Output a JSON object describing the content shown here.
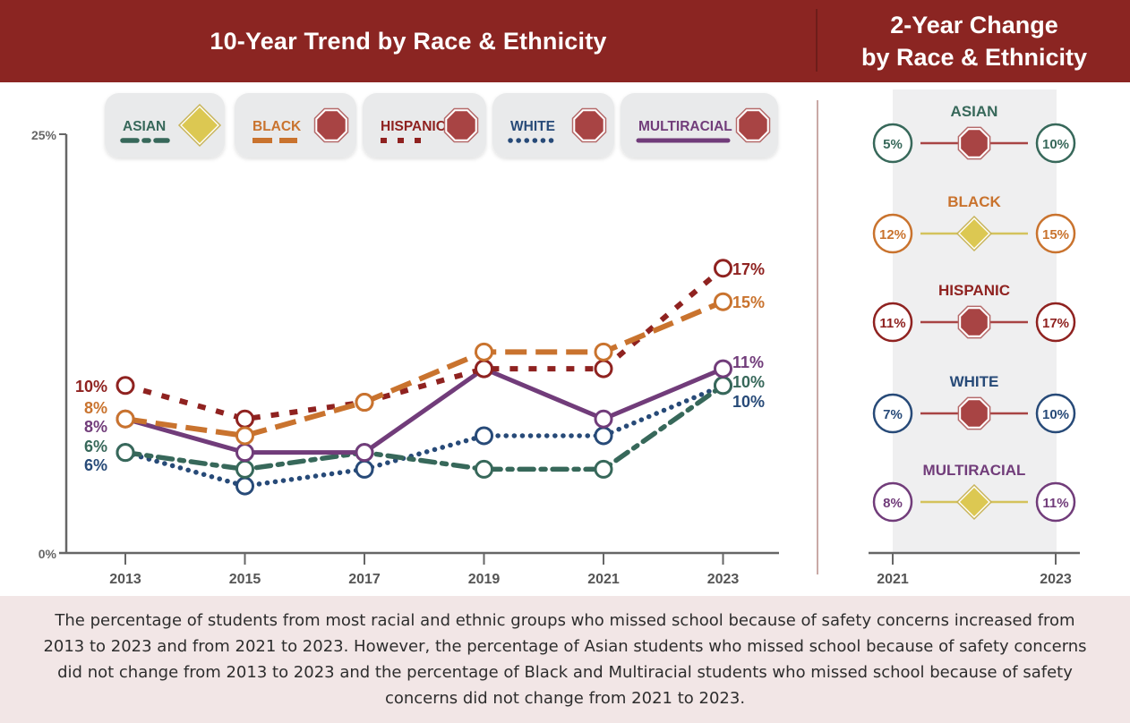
{
  "header": {
    "left_title": "10-Year Trend by Race & Ethnicity",
    "right_title": "2-Year Change\nby Race & Ethnicity"
  },
  "colors": {
    "header_bg": "#8b2522",
    "asian": "#37685a",
    "black": "#c9732e",
    "hispanic": "#8f2220",
    "white": "#274a78",
    "multiracial": "#713c7a",
    "stop_sign": "#a84444",
    "diamond": "#dcc852",
    "axis": "#666666",
    "footer_bg": "#f2e6e6"
  },
  "legend": [
    {
      "key": "asian",
      "label": "ASIAN",
      "symbol": "diamond-icon",
      "line_style": "dash-dot"
    },
    {
      "key": "black",
      "label": "BLACK",
      "symbol": "stop-sign-icon",
      "line_style": "long-dash"
    },
    {
      "key": "hispanic",
      "label": "HISPANIC",
      "symbol": "stop-sign-icon",
      "line_style": "short-dash"
    },
    {
      "key": "white",
      "label": "WHITE",
      "symbol": "stop-sign-icon",
      "line_style": "dotted"
    },
    {
      "key": "multiracial",
      "label": "MULTIRACIAL",
      "symbol": "stop-sign-icon",
      "line_style": "solid"
    }
  ],
  "chart_data": [
    {
      "type": "line",
      "title": "10-Year Trend by Race & Ethnicity",
      "xlabel": "",
      "ylabel": "",
      "x": [
        "2013",
        "2015",
        "2017",
        "2019",
        "2021",
        "2023"
      ],
      "ylim": [
        0,
        25
      ],
      "yticks": [
        "0%",
        "25%"
      ],
      "grid": false,
      "legend_position": "top",
      "series": [
        {
          "name": "Asian",
          "key": "asian",
          "values": [
            6,
            5,
            6,
            5,
            5,
            10
          ],
          "start_label": "6%",
          "end_label": "10%"
        },
        {
          "name": "Black",
          "key": "black",
          "values": [
            8,
            7,
            9,
            12,
            12,
            15
          ],
          "start_label": "8%",
          "end_label": "15%"
        },
        {
          "name": "Hispanic",
          "key": "hispanic",
          "values": [
            10,
            8,
            9,
            11,
            11,
            17
          ],
          "start_label": "10%",
          "end_label": "17%"
        },
        {
          "name": "White",
          "key": "white",
          "values": [
            6,
            4,
            5,
            7,
            7,
            10
          ],
          "start_label": "6%",
          "end_label": "10%"
        },
        {
          "name": "Multiracial",
          "key": "multiracial",
          "values": [
            8,
            6,
            6,
            11,
            8,
            11
          ],
          "start_label": "8%",
          "end_label": "11%"
        }
      ],
      "start_labels_order": [
        {
          "key": "hispanic",
          "text": "10%"
        },
        {
          "key": "black",
          "text": "8%"
        },
        {
          "key": "multiracial",
          "text": "8%"
        },
        {
          "key": "asian",
          "text": "6%"
        },
        {
          "key": "white",
          "text": "6%"
        }
      ],
      "end_labels_order": [
        {
          "key": "hispanic",
          "text": "17%"
        },
        {
          "key": "black",
          "text": "15%"
        },
        {
          "key": "multiracial",
          "text": "11%"
        },
        {
          "key": "asian",
          "text": "10%"
        },
        {
          "key": "white",
          "text": "10%"
        }
      ]
    },
    {
      "type": "table",
      "title": "2-Year Change by Race & Ethnicity",
      "x": [
        "2021",
        "2023"
      ],
      "rows": [
        {
          "group": "ASIAN",
          "key": "asian",
          "from": 5,
          "to": 10,
          "from_label": "5%",
          "to_label": "10%",
          "symbol": "stop-sign"
        },
        {
          "group": "BLACK",
          "key": "black",
          "from": 12,
          "to": 15,
          "from_label": "12%",
          "to_label": "15%",
          "symbol": "diamond"
        },
        {
          "group": "HISPANIC",
          "key": "hispanic",
          "from": 11,
          "to": 17,
          "from_label": "11%",
          "to_label": "17%",
          "symbol": "stop-sign"
        },
        {
          "group": "WHITE",
          "key": "white",
          "from": 7,
          "to": 10,
          "from_label": "7%",
          "to_label": "10%",
          "symbol": "stop-sign"
        },
        {
          "group": "MULTIRACIAL",
          "key": "multiracial",
          "from": 8,
          "to": 11,
          "from_label": "8%",
          "to_label": "11%",
          "symbol": "diamond"
        }
      ]
    }
  ],
  "footer": {
    "text": "The percentage of students from most racial and ethnic groups who missed school because of safety concerns increased from 2013 to 2023 and from 2021 to 2023. However, the percentage of Asian students who missed school because of safety concerns did not change from 2013 to 2023 and the percentage of Black and Multiracial students who missed school because of safety concerns did not change from 2021 to 2023."
  }
}
